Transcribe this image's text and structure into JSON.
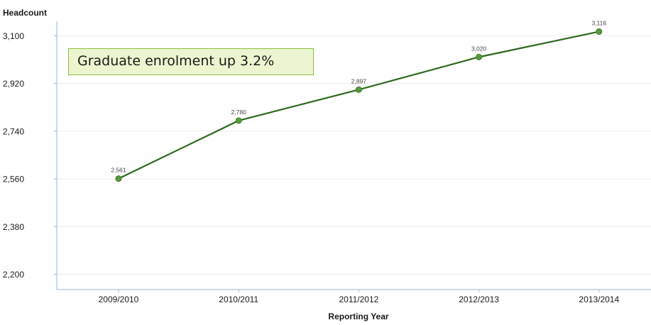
{
  "chart_data": {
    "type": "line",
    "ylabel": "Headcount",
    "xlabel": "Reporting Year",
    "categories": [
      "2009/2010",
      "2010/2011",
      "2011/2012",
      "2012/2013",
      "2013/2014"
    ],
    "series": [
      {
        "values": [
          2561,
          2780,
          2897,
          3020,
          3116
        ],
        "data_labels": [
          "2,561",
          "2,780",
          "2,897",
          "3,020",
          "3,116"
        ],
        "color": "#2d6a1f",
        "marker_color": "#5a9a3a"
      }
    ],
    "ylim": [
      2200,
      3100
    ],
    "yticks": [
      2200,
      2380,
      2560,
      2740,
      2920,
      3100
    ],
    "ytick_labels": [
      "2,200",
      "2,380",
      "2,560",
      "2,740",
      "2,920",
      "3,100"
    ],
    "grid": true,
    "annotation": "Graduate enrolment up 3.2%",
    "annotation_colors": {
      "background": "#ebf5cf",
      "border": "#8fbf3f"
    }
  }
}
